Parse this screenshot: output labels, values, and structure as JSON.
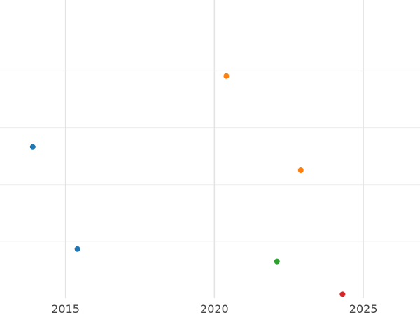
{
  "chart_data": {
    "type": "scatter",
    "x_scale": "date",
    "xlim": [
      2012.8,
      2026.9
    ],
    "ylim": [
      0,
      1.05
    ],
    "grid": true,
    "x_ticks": [
      {
        "value": 2015,
        "label": "2015"
      },
      {
        "value": 2020,
        "label": "2020"
      },
      {
        "value": 2025,
        "label": "2025"
      }
    ],
    "y_ticks_unlabeled": [
      0.2,
      0.4,
      0.6,
      0.8
    ],
    "series": [
      {
        "color": "#1f77b4",
        "points": [
          {
            "x": 2013.9,
            "y": 0.533
          },
          {
            "x": 2015.4,
            "y": 0.173
          }
        ]
      },
      {
        "color": "#ff7f0e",
        "points": [
          {
            "x": 2020.4,
            "y": 0.782
          },
          {
            "x": 2022.9,
            "y": 0.451
          }
        ]
      },
      {
        "color": "#2ca02c",
        "points": [
          {
            "x": 2022.1,
            "y": 0.129
          }
        ]
      },
      {
        "color": "#d62728",
        "points": [
          {
            "x": 2024.3,
            "y": 0.014
          }
        ]
      }
    ]
  }
}
